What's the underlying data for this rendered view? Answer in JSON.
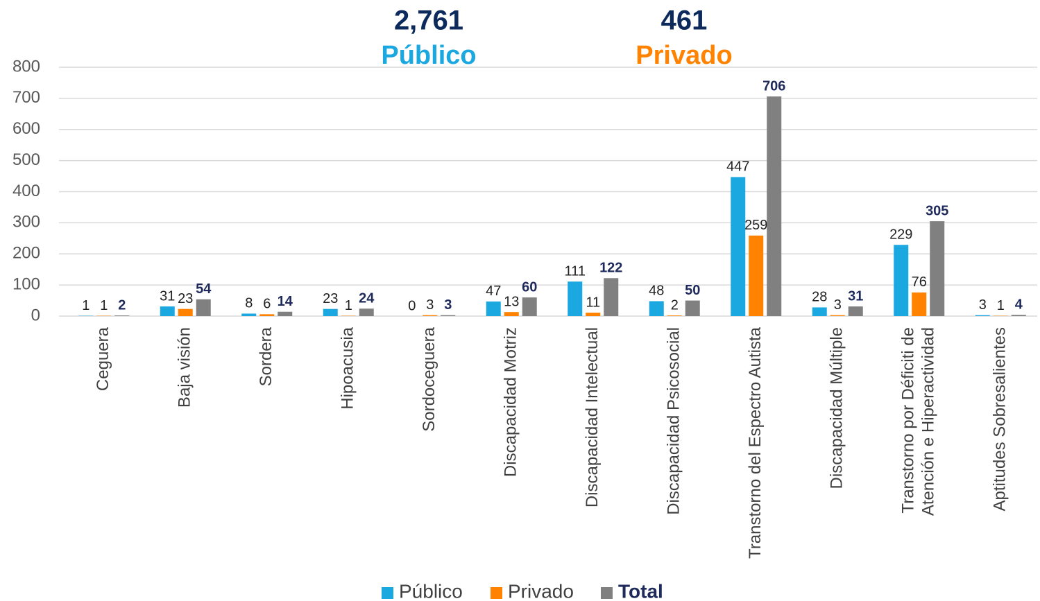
{
  "chart_data": {
    "type": "bar",
    "annotations": [
      {
        "text": "2,761",
        "color": "#0d2a5c"
      },
      {
        "text": "Público",
        "color": "#1ba8e0"
      },
      {
        "text": "461",
        "color": "#0d2a5c"
      },
      {
        "text": "Privado",
        "color": "#ff8200"
      }
    ],
    "categories": [
      "Ceguera",
      "Baja visión",
      "Sordera",
      "Hipoacusia",
      "Sordoceguera",
      "Discapacidad Motriz",
      "Discapacidad Intelectual",
      "Discapacidad Psicosocial",
      "Transtorno del Espectro Autista",
      "Discapacidad Múltiple",
      "Transtorno por Déficiti de\nAtención e Hiperactividad",
      "Aptitudes Sobresalientes"
    ],
    "series": [
      {
        "name": "Público",
        "color": "#1ba8e0",
        "values": [
          1,
          31,
          8,
          23,
          0,
          47,
          111,
          48,
          447,
          28,
          229,
          3
        ]
      },
      {
        "name": "Privado",
        "color": "#ff8200",
        "values": [
          1,
          23,
          6,
          1,
          3,
          13,
          11,
          2,
          259,
          3,
          76,
          1
        ]
      },
      {
        "name": "Total",
        "color": "#808080",
        "values": [
          2,
          54,
          14,
          24,
          3,
          60,
          122,
          50,
          706,
          31,
          305,
          4
        ]
      }
    ],
    "ylim": [
      0,
      800
    ],
    "yticks": [
      0,
      100,
      200,
      300,
      400,
      500,
      600,
      700,
      800
    ],
    "grid": true,
    "legend": "bottom"
  }
}
